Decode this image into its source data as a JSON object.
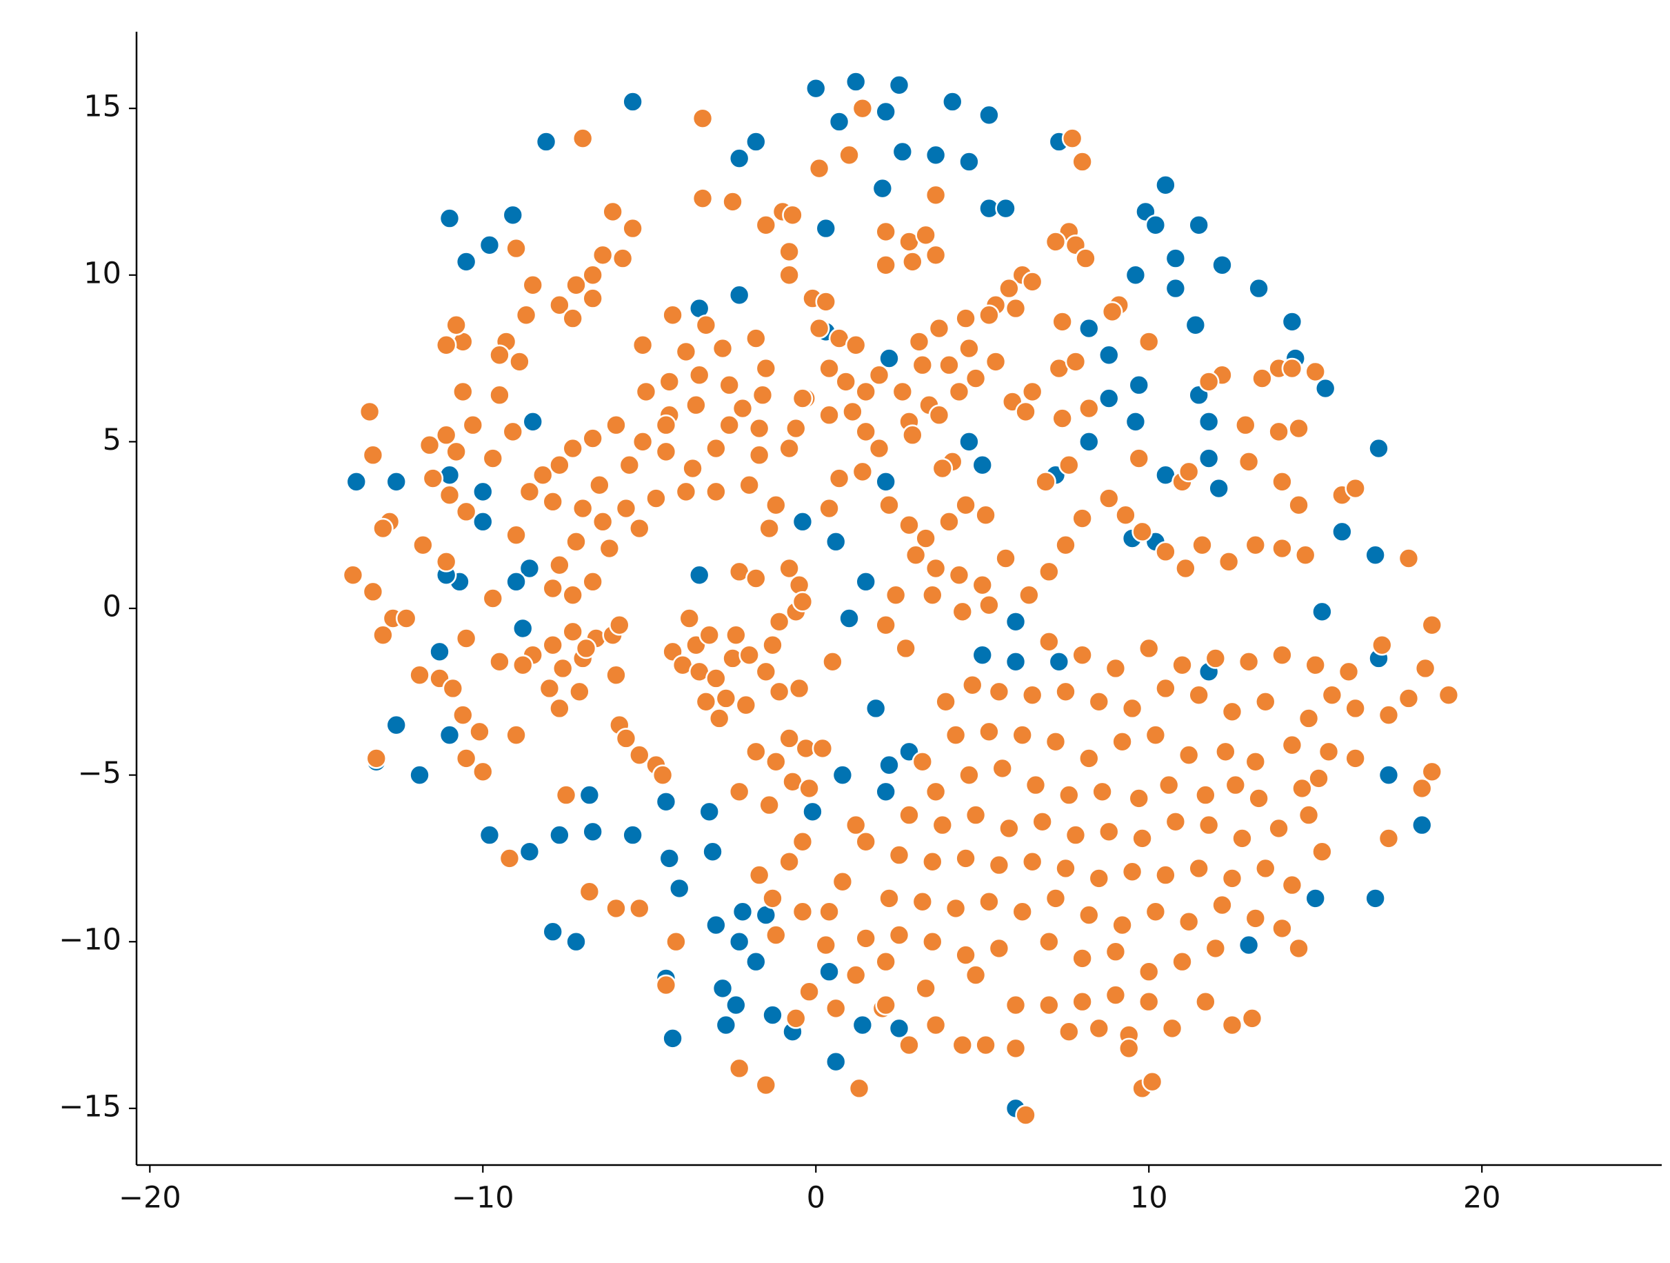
{
  "chart_data": {
    "type": "scatter",
    "xlim": [
      -20.4,
      25.4
    ],
    "ylim": [
      -16.7,
      17.3
    ],
    "xticks": [
      {
        "value": -20,
        "label": "−20"
      },
      {
        "value": -10,
        "label": "−10"
      },
      0,
      10,
      20
    ],
    "yticks": [
      {
        "value": -15,
        "label": "−15"
      },
      {
        "value": -10,
        "label": "−10"
      },
      {
        "value": -5,
        "label": "−5"
      },
      0,
      5,
      10,
      15
    ],
    "marker_edge_color": "#ffffff",
    "series": [
      {
        "color": "#0173b2",
        "x": [
          1.2,
          2.5,
          -5.5,
          0,
          4.1,
          5.2,
          -8.1,
          0.7,
          2.1,
          -2.3,
          -1.8,
          2.6,
          3.6,
          4.6,
          7.3,
          2,
          5.2,
          5.7,
          0.3,
          -11,
          -9.1,
          -10.5,
          -9.8,
          10.5,
          9.9,
          10.2,
          11.5,
          10.8,
          12.2,
          9.6,
          10.8,
          13.3,
          11.4,
          14.3,
          -2.3,
          -3.5,
          8.2,
          8.8,
          14.4,
          15.3,
          9.7,
          11.5,
          8.8,
          9.6,
          11.8,
          -8.5,
          -13.8,
          -12.6,
          -10,
          -10,
          -11,
          8.2,
          4.6,
          5,
          7.2,
          12.1,
          16.9,
          11.8,
          9.5,
          10.2,
          15.8,
          16.8,
          -8.6,
          -9,
          -10.7,
          -3.5,
          1,
          15.2,
          16.9,
          -8.8,
          -11.3,
          -12.6,
          -11,
          -11.9,
          -13.2,
          17.2,
          18.2,
          16.8,
          15,
          13,
          -9.8,
          -8.6,
          -7.7,
          -6.8,
          -6.7,
          -5.5,
          -4.4,
          -3.1,
          -3,
          -2.2,
          -1.5,
          -4.1,
          -7.9,
          -7.2,
          -4.5,
          -2.8,
          -2.4,
          -1.3,
          -4.3,
          -2.7,
          -0.7,
          1.4,
          2.5,
          0.6,
          6,
          -1.8,
          -2.3,
          0.8,
          1.8,
          2.2,
          -0.1,
          0.4,
          2.1,
          0.6,
          1.5,
          -0.4,
          6,
          7.3,
          6,
          5,
          -4.5,
          -3.2,
          2.1,
          2.8,
          0.3,
          2.2,
          -11.1,
          10.5,
          11.8
        ],
        "y": [
          15.8,
          15.7,
          15.2,
          15.6,
          15.2,
          14.8,
          14,
          14.6,
          14.9,
          13.5,
          14,
          13.7,
          13.6,
          13.4,
          14,
          12.6,
          12,
          12,
          11.4,
          11.7,
          11.8,
          10.4,
          10.9,
          12.7,
          11.9,
          11.5,
          11.5,
          10.5,
          10.3,
          10,
          9.6,
          9.6,
          8.5,
          8.6,
          9.4,
          9,
          8.4,
          7.6,
          7.5,
          6.6,
          6.7,
          6.4,
          6.3,
          5.6,
          5.6,
          5.6,
          3.8,
          3.8,
          3.5,
          2.6,
          4,
          5,
          5,
          4.3,
          4,
          3.6,
          4.8,
          4.5,
          2.1,
          2,
          2.3,
          1.6,
          1.2,
          0.8,
          0.8,
          1,
          -0.3,
          -0.1,
          -1.5,
          -0.6,
          -1.3,
          -3.5,
          -3.8,
          -5,
          -4.6,
          -5,
          -6.5,
          -8.7,
          -8.7,
          -10.1,
          -6.8,
          -7.3,
          -6.8,
          -5.6,
          -6.7,
          -6.8,
          -7.5,
          -7.3,
          -9.5,
          -9.1,
          -9.2,
          -8.4,
          -9.7,
          -10,
          -11.1,
          -11.4,
          -11.9,
          -12.2,
          -12.9,
          -12.5,
          -12.7,
          -12.5,
          -12.6,
          -13.6,
          -15,
          -10.6,
          -10,
          -5,
          -3,
          -4.7,
          -6.1,
          -10.9,
          3.8,
          2,
          0.8,
          2.6,
          -0.4,
          -1.6,
          -1.6,
          -1.4,
          -5.8,
          -6.1,
          -5.5,
          -4.3,
          8.3,
          7.5,
          1,
          4,
          -1.9
        ]
      },
      {
        "color": "#ee8433",
        "x": [
          1.4,
          -3.4,
          -7,
          7.7,
          8,
          1,
          0.1,
          -3.4,
          -2.5,
          3.6,
          -1,
          -0.7,
          -1.5,
          2.1,
          2.8,
          3.3,
          3.6,
          2.1,
          2.9,
          -6.1,
          -5.5,
          -6.4,
          -6.7,
          -7.2,
          -5.8,
          -7.7,
          -8.5,
          -9,
          -8.7,
          -9.3,
          -10.6,
          -11.1,
          -10.8,
          -9.5,
          -8.9,
          -7.3,
          -6.7,
          -0.1,
          -0.8,
          -0.8,
          7.6,
          7.8,
          8.1,
          7.2,
          6.2,
          5.8,
          5.4,
          0.3,
          -4.3,
          -3.3,
          -3.9,
          -2.8,
          -1.8,
          -3.5,
          -4.4,
          -5.2,
          -5.1,
          -2.6,
          -1.6,
          -3.6,
          -4.4,
          -6,
          -6.7,
          -7.3,
          -7.7,
          -8.2,
          -8.6,
          -7.9,
          -7,
          -6.5,
          -5.6,
          -5.2,
          -4.5,
          -3.7,
          -3,
          -2.6,
          -1.7,
          -1.7,
          -2,
          -3,
          -3.9,
          -4.8,
          -5.7,
          -6.4,
          -7.2,
          -6.2,
          -5.3,
          -1.5,
          -2.2,
          -1.2,
          -4.5,
          -0.3,
          -0.6,
          -0.8,
          -13.4,
          -13.3,
          -11.6,
          -11.1,
          -10.8,
          -10.3,
          -9.5,
          -9.7,
          -10.6,
          -9.1,
          -11,
          -11.5,
          -10.5,
          -9,
          -12.8,
          -13,
          -11.8,
          -11.1,
          -13.9,
          -13.3,
          -9.7,
          -12.7,
          -13,
          -12.3,
          -10.5,
          -11.9,
          -11.3,
          -10.9,
          -10.6,
          -10.1,
          -9,
          -10.5,
          -10,
          -13.2,
          -9.2,
          -7.7,
          -7.9,
          -7.3,
          -6.7,
          -7.3,
          -6.6,
          -6.1,
          -5.9,
          -7.9,
          -8.5,
          -8.8,
          -7.6,
          -7,
          -8,
          -7.7,
          -7.1,
          -6.9,
          -6,
          -5.9,
          -5.7,
          -5.3,
          -4.8,
          -4.6,
          -7.5,
          -6.8,
          -6,
          -5.3,
          -4.2,
          -4.5,
          -9.5,
          -4.3,
          -4,
          -3.6,
          -3.2,
          -3.5,
          -3,
          -2.5,
          -2.4,
          -2.7,
          -3.3,
          -2.1,
          -1.5,
          -1.3,
          -1.1,
          -0.6,
          -0.5,
          -1.1,
          -2,
          -3.8,
          -2.9,
          -0.5,
          -2.3,
          -1.4,
          -1.8,
          -0.8,
          -0.4,
          0.5,
          -2.3,
          -1.8,
          -1.2,
          -0.8,
          -0.3,
          0.2,
          -0.7,
          -0.2,
          -1.4,
          -0.4,
          -1.7,
          -1.3,
          -0.8,
          -0.4,
          -1.2,
          0.4,
          0.8,
          1.5,
          1.2,
          -0.6,
          -2.3,
          -1.5,
          1.3,
          0.3,
          1.2,
          0.6,
          2,
          2.8,
          3.6,
          -0.2,
          0.1,
          0.7,
          1.2,
          1.5,
          0.9,
          0.4,
          1.9,
          0.4,
          1.1,
          1.5,
          1.9,
          -0.4,
          0.7,
          0.4,
          1.4,
          2.8,
          3.1,
          3.7,
          4.5,
          5.2,
          6,
          6.5,
          3.2,
          4,
          4.6,
          5.4,
          2.6,
          3.4,
          4.3,
          4.8,
          2.9,
          3.7,
          5.9,
          6.3,
          6.5,
          7.4,
          8.2,
          7.3,
          7.8,
          9.1,
          8.9,
          7.4,
          10,
          12.2,
          11.8,
          13.4,
          13.9,
          14.3,
          15,
          12.9,
          13.9,
          14.5,
          2.2,
          2.8,
          3.3,
          4,
          4.5,
          5.1,
          3,
          3.6,
          4.3,
          5,
          5.7,
          6.4,
          7,
          7.5,
          8,
          9.3,
          9.8,
          10.5,
          11.1,
          11.6,
          12.4,
          13.2,
          14,
          14.7,
          2.4,
          2.1,
          2.7,
          3.5,
          4.4,
          5.2,
          6.9,
          7.6,
          8.8,
          4.1,
          3.8,
          9.7,
          11,
          11.2,
          13,
          14,
          15.8,
          16.2,
          14.5,
          17.8,
          7,
          8,
          9,
          10,
          11,
          12,
          13,
          14,
          15,
          16,
          17,
          18.5,
          18.3,
          19,
          17.8,
          17.2,
          16.2,
          15.5,
          14.8,
          14.3,
          13.5,
          12.5,
          11.5,
          10.5,
          9.5,
          8.5,
          7.5,
          6.5,
          5.5,
          4.7,
          3.9,
          4.2,
          5.2,
          6.2,
          7.2,
          8.2,
          9.2,
          10.2,
          11.2,
          12.3,
          13.2,
          15.4,
          15.1,
          14.6,
          16.2,
          17.2,
          18.2,
          18.5,
          3.2,
          3.6,
          4.6,
          5.6,
          6.6,
          7.6,
          8.6,
          9.7,
          10.6,
          11.7,
          12.6,
          13.3,
          2.8,
          3.8,
          4.8,
          5.8,
          6.8,
          7.8,
          8.8,
          9.8,
          10.8,
          11.8,
          12.8,
          13.9,
          14.8,
          15.2,
          2.5,
          3.5,
          4.5,
          5.5,
          6.5,
          7.5,
          8.5,
          9.5,
          10.5,
          11.5,
          12.5,
          13.5,
          14.3,
          2.2,
          3.2,
          4.2,
          5.2,
          6.2,
          7.2,
          8.2,
          9.2,
          10.2,
          11.2,
          12.2,
          13.2,
          14,
          1.5,
          2.5,
          3.5,
          4.5,
          5.5,
          7,
          8,
          9,
          10,
          11,
          12,
          14.5,
          2.1,
          4.8,
          6,
          7,
          8,
          9,
          10,
          11.7,
          7.6,
          8.5,
          9.4,
          10.7,
          12.5,
          13.1,
          4.4,
          5.1,
          6,
          9.4,
          9.8,
          10.1,
          6.3,
          2.1,
          3.3
        ],
        "y": [
          15,
          14.7,
          14.1,
          14.1,
          13.4,
          13.6,
          13.2,
          12.3,
          12.2,
          12.4,
          11.9,
          11.8,
          11.5,
          11.3,
          11,
          11.2,
          10.6,
          10.3,
          10.4,
          11.9,
          11.4,
          10.6,
          10,
          9.7,
          10.5,
          9.1,
          9.7,
          10.8,
          8.8,
          8,
          8,
          7.9,
          8.5,
          7.6,
          7.4,
          8.7,
          9.3,
          9.3,
          10.7,
          10,
          11.3,
          10.9,
          10.5,
          11,
          10,
          9.6,
          9.1,
          9.2,
          8.8,
          8.5,
          7.7,
          7.8,
          8.1,
          7,
          6.8,
          7.9,
          6.5,
          6.7,
          6.4,
          6.1,
          5.8,
          5.5,
          5.1,
          4.8,
          4.3,
          4,
          3.5,
          3.2,
          3,
          3.7,
          4.3,
          5,
          4.7,
          4.2,
          4.8,
          5.5,
          5.4,
          4.6,
          3.7,
          3.5,
          3.5,
          3.3,
          3,
          2.6,
          2,
          1.8,
          2.4,
          7.2,
          6,
          3.1,
          5.5,
          6.3,
          5.4,
          4.8,
          5.9,
          4.6,
          4.9,
          5.2,
          4.7,
          5.5,
          6.4,
          4.5,
          6.5,
          5.3,
          3.4,
          3.9,
          2.9,
          2.2,
          2.6,
          2.4,
          1.9,
          1.4,
          1,
          0.5,
          0.3,
          -0.3,
          -0.8,
          -0.3,
          -0.9,
          -2,
          -2.1,
          -2.4,
          -3.2,
          -3.7,
          -3.8,
          -4.5,
          -4.9,
          -4.5,
          -7.5,
          1.3,
          0.6,
          0.4,
          0.8,
          -0.7,
          -0.9,
          -0.8,
          -0.5,
          -1.1,
          -1.4,
          -1.7,
          -1.8,
          -1.5,
          -2.4,
          -3,
          -2.5,
          -1.2,
          -2,
          -3.5,
          -3.9,
          -4.4,
          -4.7,
          -5,
          -5.6,
          -8.5,
          -9,
          -9,
          -10,
          -11.3,
          -1.6,
          -1.3,
          -1.7,
          -1.1,
          -0.8,
          -1.9,
          -2.1,
          -1.5,
          -0.8,
          -2.7,
          -2.8,
          -2.9,
          -1.9,
          -1.1,
          -0.4,
          -0.1,
          0.7,
          -2.5,
          -1.4,
          -0.3,
          -3.3,
          -2.4,
          1.1,
          2.4,
          0.9,
          1.2,
          0.2,
          -1.6,
          -5.5,
          -4.3,
          -4.6,
          -3.9,
          -4.2,
          -4.2,
          -5.2,
          -5.4,
          -5.9,
          -7,
          -8,
          -8.7,
          -7.6,
          -9.1,
          -9.8,
          -9.1,
          -8.2,
          -7,
          -6.5,
          -12.3,
          -13.8,
          -14.3,
          -14.4,
          -10.1,
          -11,
          -12,
          -12,
          -13.1,
          -12.5,
          -11.5,
          8.4,
          8.1,
          7.9,
          6.5,
          6.8,
          7.2,
          7,
          5.8,
          5.9,
          5.3,
          4.8,
          6.3,
          3.9,
          3,
          4.1,
          5.6,
          8,
          8.4,
          8.7,
          8.8,
          9,
          9.8,
          7.3,
          7.3,
          7.8,
          7.4,
          6.5,
          6.1,
          6.5,
          6.9,
          5.2,
          5.8,
          6.2,
          5.9,
          6.5,
          5.7,
          6,
          7.2,
          7.4,
          9.1,
          8.9,
          8.6,
          8,
          7,
          6.8,
          6.9,
          7.2,
          7.2,
          7.1,
          5.5,
          5.3,
          5.4,
          3.1,
          2.5,
          2.1,
          2.6,
          3.1,
          2.8,
          1.6,
          1.2,
          1,
          0.7,
          1.5,
          0.4,
          1.1,
          1.9,
          2.7,
          2.8,
          2.3,
          1.7,
          1.2,
          1.9,
          1.4,
          1.9,
          1.8,
          1.6,
          0.4,
          -0.5,
          -1.2,
          0.4,
          -0.1,
          0.1,
          3.8,
          4.3,
          3.3,
          4.4,
          4.2,
          4.5,
          3.8,
          4.1,
          4.4,
          3.8,
          3.4,
          3.6,
          3.1,
          1.5,
          -1,
          -1.4,
          -1.8,
          -1.2,
          -1.7,
          -1.5,
          -1.6,
          -1.4,
          -1.7,
          -1.9,
          -1.1,
          -0.5,
          -1.8,
          -2.6,
          -2.7,
          -3.2,
          -3,
          -2.6,
          -3.3,
          -4.1,
          -2.8,
          -3.1,
          -2.6,
          -2.4,
          -3,
          -2.8,
          -2.5,
          -2.6,
          -2.5,
          -2.3,
          -2.8,
          -3.8,
          -3.7,
          -3.8,
          -4,
          -4.5,
          -4,
          -3.8,
          -4.4,
          -4.3,
          -4.6,
          -4.3,
          -5.1,
          -5.4,
          -4.5,
          -6.9,
          -5.4,
          -4.9,
          -4.6,
          -5.5,
          -5,
          -4.8,
          -5.3,
          -5.6,
          -5.5,
          -5.7,
          -5.3,
          -5.6,
          -5.3,
          -5.7,
          -6.2,
          -6.5,
          -6.2,
          -6.6,
          -6.4,
          -6.8,
          -6.7,
          -6.9,
          -6.4,
          -6.5,
          -6.9,
          -6.6,
          -6.2,
          -7.3,
          -7.4,
          -7.6,
          -7.5,
          -7.7,
          -7.6,
          -7.8,
          -8.1,
          -7.9,
          -8,
          -7.8,
          -8.1,
          -7.8,
          -8.3,
          -8.7,
          -8.8,
          -9,
          -8.8,
          -9.1,
          -8.7,
          -9.2,
          -9.5,
          -9.1,
          -9.4,
          -8.9,
          -9.3,
          -9.6,
          -9.9,
          -9.8,
          -10,
          -10.4,
          -10.2,
          -10,
          -10.5,
          -10.3,
          -10.9,
          -10.6,
          -10.2,
          -10.2,
          -10.6,
          -11,
          -11.9,
          -11.9,
          -11.8,
          -11.6,
          -11.8,
          -11.8,
          -12.7,
          -12.6,
          -12.8,
          -12.6,
          -12.5,
          -12.3,
          -13.1,
          -13.1,
          -13.2,
          -13.2,
          -14.4,
          -14.2,
          -15.2,
          -11.9,
          -11.4
        ]
      }
    ]
  }
}
